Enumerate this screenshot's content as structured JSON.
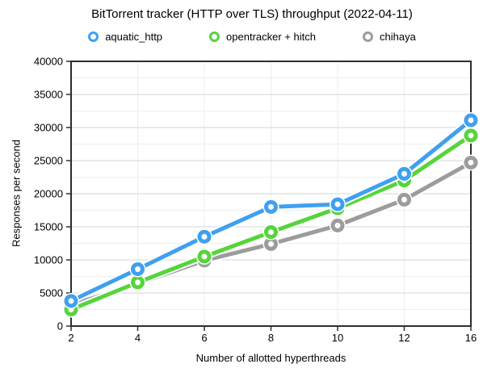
{
  "title": "BitTorrent tracker (HTTP over TLS) throughput (2022-04-11)",
  "chart_data": {
    "type": "line",
    "title": "BitTorrent tracker (HTTP over TLS) throughput (2022-04-11)",
    "xlabel": "Number of allotted hyperthreads",
    "ylabel": "Responses per second",
    "x_categories": [
      "2",
      "4",
      "6",
      "8",
      "10",
      "12",
      "16"
    ],
    "ylim": [
      0,
      40000
    ],
    "y_major_step": 5000,
    "y_minor_step": 2500,
    "grid": true,
    "legend_position": "top",
    "marker_style": "open-circle",
    "frame_color": "#2e2e2e",
    "major_grid_color": "#d6d6d6",
    "minor_grid_color": "#ededed",
    "series": [
      {
        "name": "aquatic_http",
        "color": "#3FA0F0",
        "values": [
          3800,
          8600,
          13500,
          18000,
          18400,
          23000,
          31100
        ]
      },
      {
        "name": "opentracker + hitch",
        "color": "#56D43C",
        "values": [
          2500,
          6600,
          10500,
          14200,
          17800,
          22000,
          28800
        ]
      },
      {
        "name": "chihaya",
        "color": "#9C9C9C",
        "values": [
          3200,
          6400,
          9900,
          12400,
          15200,
          19100,
          24700
        ]
      }
    ]
  }
}
